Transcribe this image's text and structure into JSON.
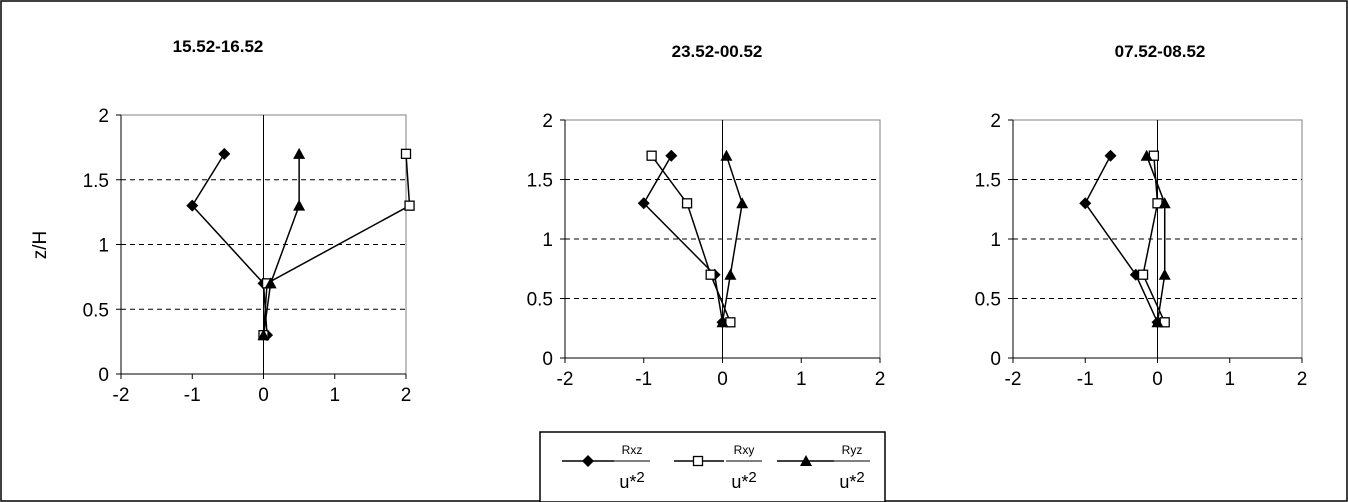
{
  "chart_data": [
    {
      "type": "line",
      "title": "15.52-16.52",
      "ylabel": "z/H",
      "xlim": [
        -2,
        2
      ],
      "ylim": [
        0,
        2
      ],
      "xticks": [
        "-2",
        "-1",
        "0",
        "1",
        "2"
      ],
      "yticks": [
        "0",
        "0.5",
        "1",
        "1.5",
        "2"
      ],
      "grid": "horizontal dashed",
      "series": [
        {
          "name": "Rxz",
          "marker": "diamond",
          "points": [
            [
              0.05,
              0.3
            ],
            [
              0,
              0.7
            ],
            [
              -1.0,
              1.3
            ],
            [
              -0.55,
              1.7
            ]
          ]
        },
        {
          "name": "Rxy",
          "marker": "square",
          "points": [
            [
              0,
              0.3
            ],
            [
              0.05,
              0.7
            ],
            [
              2.05,
              1.3
            ],
            [
              2.0,
              1.7
            ]
          ]
        },
        {
          "name": "Ryz",
          "marker": "triangle",
          "points": [
            [
              0,
              0.3
            ],
            [
              0.1,
              0.7
            ],
            [
              0.5,
              1.3
            ],
            [
              0.5,
              1.7
            ]
          ]
        }
      ]
    },
    {
      "type": "line",
      "title": "23.52-00.52",
      "ylabel": "",
      "xlim": [
        -2,
        2
      ],
      "ylim": [
        0,
        2
      ],
      "xticks": [
        "-2",
        "-1",
        "0",
        "1",
        "2"
      ],
      "yticks": [
        "0",
        "0.5",
        "1",
        "1.5",
        "2"
      ],
      "grid": "horizontal dashed",
      "series": [
        {
          "name": "Rxz",
          "marker": "diamond",
          "points": [
            [
              0,
              0.3
            ],
            [
              -0.1,
              0.7
            ],
            [
              -1.0,
              1.3
            ],
            [
              -0.65,
              1.7
            ]
          ]
        },
        {
          "name": "Rxy",
          "marker": "square",
          "points": [
            [
              0.1,
              0.3
            ],
            [
              -0.15,
              0.7
            ],
            [
              -0.45,
              1.3
            ],
            [
              -0.9,
              1.7
            ]
          ]
        },
        {
          "name": "Ryz",
          "marker": "triangle",
          "points": [
            [
              0,
              0.3
            ],
            [
              0.1,
              0.7
            ],
            [
              0.25,
              1.3
            ],
            [
              0.05,
              1.7
            ]
          ]
        }
      ]
    },
    {
      "type": "line",
      "title": "07.52-08.52",
      "ylabel": "",
      "xlim": [
        -2,
        2
      ],
      "ylim": [
        0,
        2
      ],
      "xticks": [
        "-2",
        "-1",
        "0",
        "1",
        "2"
      ],
      "yticks": [
        "0",
        "0.5",
        "1",
        "1.5",
        "2"
      ],
      "grid": "horizontal dashed",
      "series": [
        {
          "name": "Rxz",
          "marker": "diamond",
          "points": [
            [
              0,
              0.3
            ],
            [
              -0.3,
              0.7
            ],
            [
              -1.0,
              1.3
            ],
            [
              -0.65,
              1.7
            ]
          ]
        },
        {
          "name": "Rxy",
          "marker": "square",
          "points": [
            [
              0.1,
              0.3
            ],
            [
              -0.2,
              0.7
            ],
            [
              0,
              1.3
            ],
            [
              -0.05,
              1.7
            ]
          ]
        },
        {
          "name": "Ryz",
          "marker": "triangle",
          "points": [
            [
              0,
              0.3
            ],
            [
              0.1,
              0.7
            ],
            [
              0.1,
              1.3
            ],
            [
              -0.15,
              1.7
            ]
          ]
        }
      ]
    }
  ],
  "legend": {
    "placement": "bottom-center",
    "entries": [
      {
        "marker": "diamond",
        "numerator": "Rxz",
        "denominator": "u*",
        "exponent": "2"
      },
      {
        "marker": "square",
        "numerator": "Rxy",
        "denominator": "u*",
        "exponent": "2"
      },
      {
        "marker": "triangle",
        "numerator": "Ryz",
        "denominator": "u*",
        "exponent": "2"
      }
    ]
  }
}
